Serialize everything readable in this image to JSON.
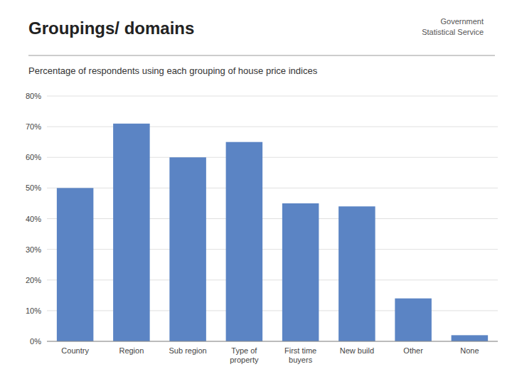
{
  "chart_data": {
    "type": "bar",
    "title": "Groupings/ domains",
    "subtitle": "Percentage of respondents using each grouping of house price indices",
    "annotations": [
      "Government",
      "Statistical Service"
    ],
    "categories": [
      "Country",
      "Region",
      "Sub region",
      "Type of property",
      "First time buyers",
      "New build",
      "Other",
      "None"
    ],
    "values": [
      50,
      71,
      60,
      65,
      45,
      44,
      14,
      2
    ],
    "color": "#5B84C4",
    "ylim": [
      0,
      80
    ],
    "yticks": [
      {
        "value": 0,
        "label": "0%"
      },
      {
        "value": 10,
        "label": "10%"
      },
      {
        "value": 20,
        "label": "20%"
      },
      {
        "value": 30,
        "label": "30%"
      },
      {
        "value": 40,
        "label": "40%"
      },
      {
        "value": 50,
        "label": "50%"
      },
      {
        "value": 60,
        "label": "60%"
      },
      {
        "value": 70,
        "label": "70%"
      },
      {
        "value": 80,
        "label": "80%"
      }
    ],
    "grid": true
  }
}
